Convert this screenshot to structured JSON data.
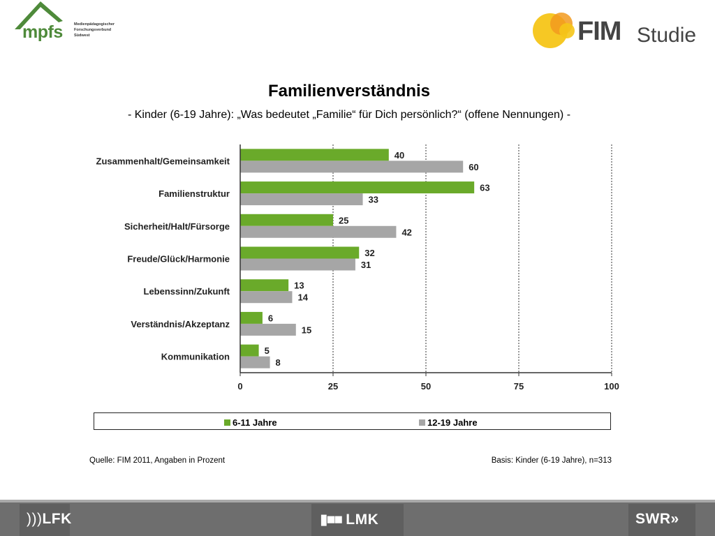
{
  "logos": {
    "mpfs": {
      "name": "mpfs",
      "subtitle": [
        "Medienpädagogischer",
        "Forschungsverbund",
        "Südwest"
      ]
    },
    "fim": {
      "name": "FIM",
      "suffix": "Studie"
    },
    "footer": {
      "left": "LFK",
      "center": "LMK",
      "right": "SWR"
    }
  },
  "colors": {
    "green": "#6aaa2a",
    "gray": "#a6a6a6"
  },
  "chart_data": {
    "type": "bar",
    "orientation": "horizontal",
    "title": "Familienverständnis",
    "subtitle": "- Kinder (6-19 Jahre): „Was bedeutet „Familie“ für Dich persönlich?“ (offene Nennungen) -",
    "categories": [
      "Zusammenhalt/Gemeinsamkeit",
      "Familienstruktur",
      "Sicherheit/Halt/Fürsorge",
      "Freude/Glück/Harmonie",
      "Lebenssinn/Zukunft",
      "Verständnis/Akzeptanz",
      "Kommunikation"
    ],
    "series": [
      {
        "name": "6-11 Jahre",
        "color": "#6aaa2a",
        "values": [
          40,
          63,
          25,
          32,
          13,
          6,
          5
        ]
      },
      {
        "name": "12-19 Jahre",
        "color": "#a6a6a6",
        "values": [
          60,
          33,
          42,
          31,
          14,
          15,
          8
        ]
      }
    ],
    "xlim": [
      0,
      100
    ],
    "xticks": [
      0,
      25,
      50,
      75,
      100
    ],
    "grid": "vertical dashed",
    "legend_position": "bottom"
  },
  "footer_notes": {
    "source": "Quelle: FIM 2011,  Angaben in Prozent",
    "basis": "Basis: Kinder (6-19 Jahre), n=313"
  }
}
